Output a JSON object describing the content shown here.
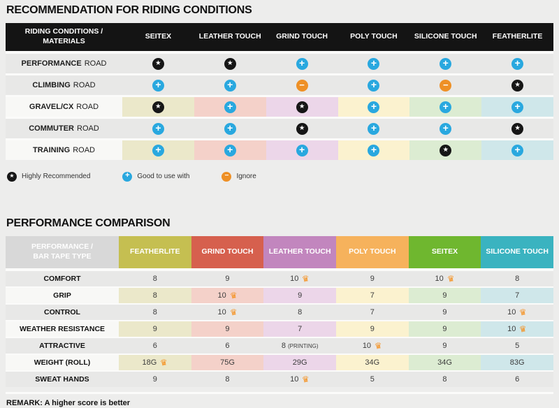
{
  "recommendation": {
    "title": "RECOMMENDATION FOR RIDING CONDITIONS",
    "header_label": "RIDING CONDITIONS / MATERIALS",
    "columns": [
      "SEITEX",
      "LEATHER TOUCH",
      "GRIND TOUCH",
      "POLY TOUCH",
      "SILICONE TOUCH",
      "FEATHERLITE"
    ],
    "rows": [
      {
        "name": "PERFORMANCE",
        "type": "ROAD",
        "cells": [
          "star",
          "star",
          "plus",
          "plus",
          "plus",
          "plus"
        ]
      },
      {
        "name": "CLIMBING",
        "type": "ROAD",
        "cells": [
          "plus",
          "plus",
          "minus",
          "plus",
          "minus",
          "star"
        ]
      },
      {
        "name": "GRAVEL/CX",
        "type": "ROAD",
        "cells": [
          "star",
          "plus",
          "star",
          "plus",
          "plus",
          "plus"
        ]
      },
      {
        "name": "COMMUTER",
        "type": "ROAD",
        "cells": [
          "plus",
          "plus",
          "star",
          "plus",
          "plus",
          "star"
        ]
      },
      {
        "name": "TRAINING",
        "type": "ROAD",
        "cells": [
          "plus",
          "plus",
          "plus",
          "plus",
          "star",
          "plus"
        ]
      }
    ],
    "legend": [
      {
        "icon": "star",
        "label": "Highly Recommended"
      },
      {
        "icon": "plus",
        "label": "Good to use with"
      },
      {
        "icon": "minus",
        "label": "Ignore"
      }
    ]
  },
  "performance": {
    "title": "PERFORMANCE COMPARISON",
    "header_label": "PERFORMANCE / BAR TAPE TYPE",
    "columns": [
      "FEATHERLITE",
      "GRIND TOUCH",
      "LEATHER TOUCH",
      "POLY TOUCH",
      "SEITEX",
      "SILICONE TOUCH"
    ],
    "rows": [
      {
        "label": "COMFORT",
        "cells": [
          {
            "value": "8"
          },
          {
            "value": "9"
          },
          {
            "value": "10",
            "crown": true
          },
          {
            "value": "9"
          },
          {
            "value": "10",
            "crown": true
          },
          {
            "value": "8"
          }
        ]
      },
      {
        "label": "GRIP",
        "cells": [
          {
            "value": "8"
          },
          {
            "value": "10",
            "crown": true
          },
          {
            "value": "9"
          },
          {
            "value": "7"
          },
          {
            "value": "9"
          },
          {
            "value": "7"
          }
        ]
      },
      {
        "label": "CONTROL",
        "cells": [
          {
            "value": "8"
          },
          {
            "value": "10",
            "crown": true
          },
          {
            "value": "8"
          },
          {
            "value": "7"
          },
          {
            "value": "9"
          },
          {
            "value": "10",
            "crown": true
          }
        ]
      },
      {
        "label": "WEATHER RESISTANCE",
        "cells": [
          {
            "value": "9"
          },
          {
            "value": "9"
          },
          {
            "value": "7"
          },
          {
            "value": "9"
          },
          {
            "value": "9"
          },
          {
            "value": "10",
            "crown": true
          }
        ]
      },
      {
        "label": "ATTRACTIVE",
        "cells": [
          {
            "value": "6"
          },
          {
            "value": "6"
          },
          {
            "value": "8",
            "note": "(PRINTING)"
          },
          {
            "value": "10",
            "crown": true
          },
          {
            "value": "9"
          },
          {
            "value": "5"
          }
        ]
      },
      {
        "label": "WEIGHT (ROLL)",
        "cells": [
          {
            "value": "18G",
            "crown": true
          },
          {
            "value": "75G"
          },
          {
            "value": "29G"
          },
          {
            "value": "34G"
          },
          {
            "value": "34G"
          },
          {
            "value": "83G"
          }
        ]
      },
      {
        "label": "SWEAT HANDS",
        "cells": [
          {
            "value": "9"
          },
          {
            "value": "8"
          },
          {
            "value": "10",
            "crown": true
          },
          {
            "value": "5"
          },
          {
            "value": "8"
          },
          {
            "value": "6"
          }
        ]
      }
    ],
    "remark": "REMARK: A higher score is better"
  },
  "colors": {
    "page_bg": "#ededec",
    "header_bar": "#141414",
    "row_gray": "#e8e8e7",
    "row_label_light": "#f8f8f6",
    "tint_cream": "#ebe8ca",
    "tint_pink": "#f4d1c9",
    "tint_purple": "#ecd6e9",
    "tint_yellow": "#fbf2cf",
    "tint_green": "#dcecd2",
    "tint_blue": "#cfe7ea",
    "col_featherlite": "#c5bf51",
    "col_grind_touch": "#d6604e",
    "col_leather_touch": "#c286be",
    "col_poly_touch": "#f6b25c",
    "col_seitex": "#6fb72f",
    "col_silicone_touch": "#3ab3c0",
    "icon_star": "#161616",
    "icon_plus": "#29a8df",
    "icon_minus": "#ee9026",
    "icon_crown": "#f59120"
  },
  "chart_data": [
    {
      "type": "table",
      "title": "RECOMMENDATION FOR RIDING CONDITIONS",
      "row_header": "RIDING CONDITIONS / MATERIALS",
      "columns": [
        "SEITEX",
        "LEATHER TOUCH",
        "GRIND TOUCH",
        "POLY TOUCH",
        "SILICONE TOUCH",
        "FEATHERLITE"
      ],
      "rows": [
        {
          "label": "PERFORMANCE ROAD",
          "values": [
            "Highly Recommended",
            "Highly Recommended",
            "Good to use with",
            "Good to use with",
            "Good to use with",
            "Good to use with"
          ]
        },
        {
          "label": "CLIMBING ROAD",
          "values": [
            "Good to use with",
            "Good to use with",
            "Ignore",
            "Good to use with",
            "Ignore",
            "Highly Recommended"
          ]
        },
        {
          "label": "GRAVEL/CX ROAD",
          "values": [
            "Highly Recommended",
            "Good to use with",
            "Highly Recommended",
            "Good to use with",
            "Good to use with",
            "Good to use with"
          ]
        },
        {
          "label": "COMMUTER ROAD",
          "values": [
            "Good to use with",
            "Good to use with",
            "Highly Recommended",
            "Good to use with",
            "Good to use with",
            "Highly Recommended"
          ]
        },
        {
          "label": "TRAINING ROAD",
          "values": [
            "Good to use with",
            "Good to use with",
            "Good to use with",
            "Good to use with",
            "Highly Recommended",
            "Good to use with"
          ]
        }
      ],
      "legend": [
        "Highly Recommended (star)",
        "Good to use with (plus)",
        "Ignore (minus)"
      ]
    },
    {
      "type": "table",
      "title": "PERFORMANCE COMPARISON",
      "row_header": "PERFORMANCE / BAR TAPE TYPE",
      "columns": [
        "FEATHERLITE",
        "GRIND TOUCH",
        "LEATHER TOUCH",
        "POLY TOUCH",
        "SEITEX",
        "SILICONE TOUCH"
      ],
      "rows": [
        {
          "label": "COMFORT",
          "values": [
            "8",
            "9",
            "10 (best)",
            "9",
            "10 (best)",
            "8"
          ]
        },
        {
          "label": "GRIP",
          "values": [
            "8",
            "10 (best)",
            "9",
            "7",
            "9",
            "7"
          ]
        },
        {
          "label": "CONTROL",
          "values": [
            "8",
            "10 (best)",
            "8",
            "7",
            "9",
            "10 (best)"
          ]
        },
        {
          "label": "WEATHER RESISTANCE",
          "values": [
            "9",
            "9",
            "7",
            "9",
            "9",
            "10 (best)"
          ]
        },
        {
          "label": "ATTRACTIVE",
          "values": [
            "6",
            "6",
            "8 (PRINTING)",
            "10 (best)",
            "9",
            "5"
          ]
        },
        {
          "label": "WEIGHT (ROLL)",
          "values": [
            "18G (best)",
            "75G",
            "29G",
            "34G",
            "34G",
            "83G"
          ]
        },
        {
          "label": "SWEAT HANDS",
          "values": [
            "9",
            "8",
            "10 (best)",
            "5",
            "8",
            "6"
          ]
        }
      ],
      "note": "REMARK: A higher score is better"
    }
  ]
}
